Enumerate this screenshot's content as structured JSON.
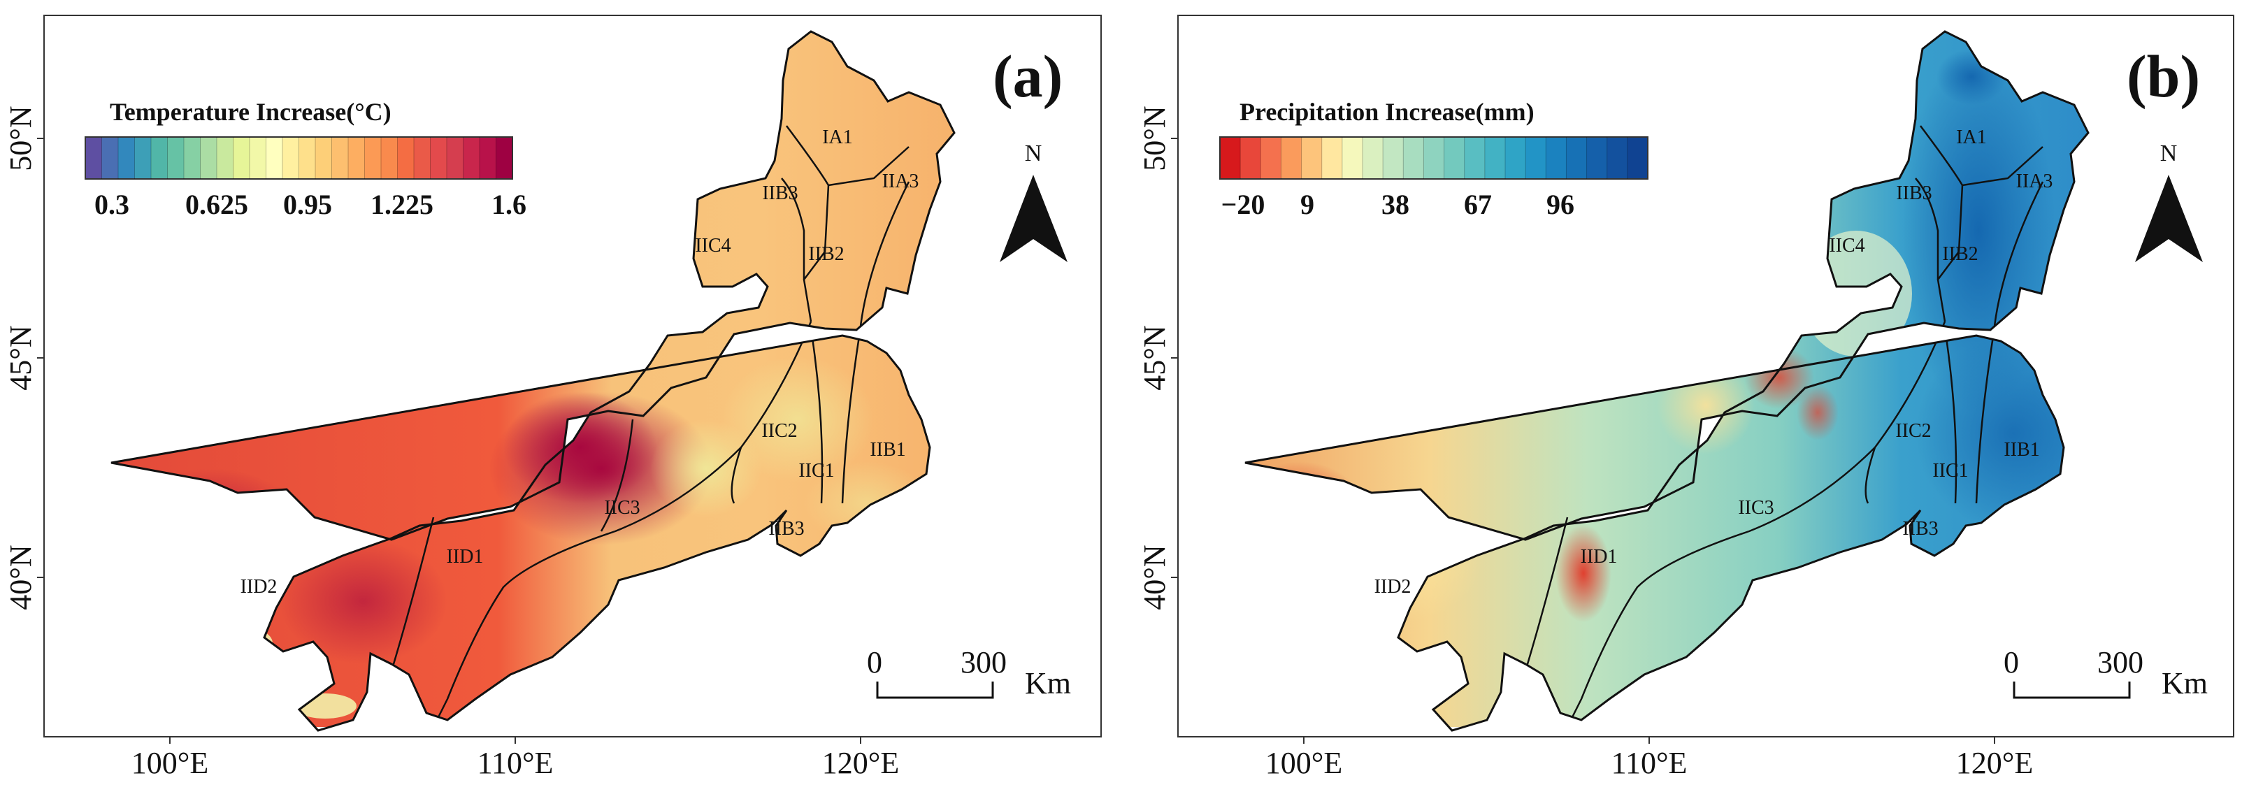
{
  "panels": [
    {
      "id": "a",
      "panel_label": "(a)",
      "colorbar": {
        "title": "Temperature Increase(°C)",
        "ticks": [
          "0.3",
          "0.625",
          "0.95",
          "1.225",
          "1.6"
        ],
        "colors": [
          "#5e4fa2",
          "#4a6fb3",
          "#3288bd",
          "#3d9fb7",
          "#51b6a8",
          "#66c2a5",
          "#86d0a4",
          "#abdda4",
          "#c9e99e",
          "#e6f598",
          "#f2f8a8",
          "#ffffbf",
          "#fff0a0",
          "#fee08b",
          "#fdcf78",
          "#fdbf6f",
          "#fdae61",
          "#fc9a55",
          "#f98a4d",
          "#f46d43",
          "#ea5a48",
          "#e34a4c",
          "#d53e4f",
          "#c9264c",
          "#b8124a",
          "#9e0142"
        ]
      },
      "x_ticks": [
        "100°E",
        "110°E",
        "120°E"
      ],
      "y_ticks": [
        "50°N",
        "45°N",
        "40°N"
      ],
      "regions": [
        "IA1",
        "IIB3",
        "IIA3",
        "IIC4",
        "IIB2",
        "IIC2",
        "IIB1",
        "IIC1",
        "IIC3",
        "IIB3",
        "IID1",
        "IID2"
      ],
      "north_label": "N",
      "scale": {
        "zero": "0",
        "distance": "300",
        "unit": "Km"
      }
    },
    {
      "id": "b",
      "panel_label": "(b)",
      "colorbar": {
        "title": "Precipitation Increase(mm)",
        "ticks": [
          "−20",
          "9",
          "38",
          "67",
          "96"
        ],
        "colors": [
          "#d7191c",
          "#e8473a",
          "#f4714e",
          "#fa9b5c",
          "#fdc47b",
          "#ffe7a0",
          "#f5f8bc",
          "#daf0c0",
          "#c2e7c2",
          "#a8ddc0",
          "#8ed3bf",
          "#73c9be",
          "#59bec2",
          "#42b2c4",
          "#2fa4c6",
          "#2294c6",
          "#1b82bf",
          "#1771b5",
          "#1560aa",
          "#13519e",
          "#104392"
        ]
      },
      "x_ticks": [
        "100°E",
        "110°E",
        "120°E"
      ],
      "y_ticks": [
        "50°N",
        "45°N",
        "40°N"
      ],
      "regions": [
        "IA1",
        "IIB3",
        "IIA3",
        "IIC4",
        "IIB2",
        "IIC2",
        "IIB1",
        "IIC1",
        "IIC3",
        "IIB3",
        "IID1",
        "IID2"
      ],
      "north_label": "N",
      "scale": {
        "zero": "0",
        "distance": "300",
        "unit": "Km"
      }
    }
  ]
}
